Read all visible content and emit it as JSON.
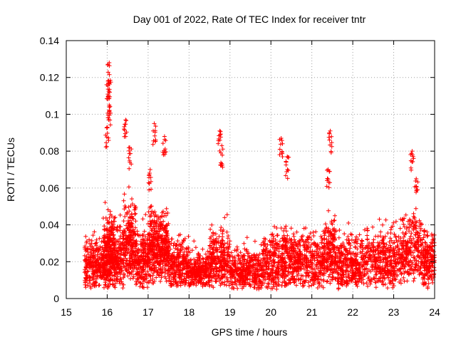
{
  "chart_data": {
    "type": "scatter",
    "title": "Day 001 of 2022, Rate Of TEC Index for receiver tntr",
    "xlabel": "GPS time / hours",
    "ylabel": "ROTI / TECUs",
    "xlim": [
      15,
      24
    ],
    "ylim": [
      0,
      0.14
    ],
    "xticks": [
      "15",
      "16",
      "17",
      "18",
      "19",
      "20",
      "21",
      "22",
      "23",
      "24"
    ],
    "yticks": [
      "0",
      "0.02",
      "0.04",
      "0.06",
      "0.08",
      "0.1",
      "0.12",
      "0.14"
    ],
    "grid": true,
    "marker": "+",
    "color": "#ff0000",
    "series": [
      {
        "name": "ROTI",
        "peaks": [
          {
            "x": 16.05,
            "y": 0.128
          },
          {
            "x": 16.02,
            "y": 0.118
          },
          {
            "x": 16.03,
            "y": 0.11
          },
          {
            "x": 16.05,
            "y": 0.105
          },
          {
            "x": 16.0,
            "y": 0.093
          },
          {
            "x": 16.45,
            "y": 0.097
          },
          {
            "x": 16.55,
            "y": 0.082
          },
          {
            "x": 17.15,
            "y": 0.095
          },
          {
            "x": 17.4,
            "y": 0.088
          },
          {
            "x": 17.05,
            "y": 0.07
          },
          {
            "x": 18.75,
            "y": 0.091
          },
          {
            "x": 18.8,
            "y": 0.083
          },
          {
            "x": 20.25,
            "y": 0.087
          },
          {
            "x": 20.4,
            "y": 0.077
          },
          {
            "x": 21.45,
            "y": 0.091
          },
          {
            "x": 21.4,
            "y": 0.07
          },
          {
            "x": 23.45,
            "y": 0.08
          },
          {
            "x": 23.55,
            "y": 0.065
          }
        ],
        "bands": [
          {
            "x0": 15.45,
            "x1": 16.0,
            "ymin": 0.005,
            "ymax": 0.045,
            "n": 320
          },
          {
            "x0": 15.9,
            "x1": 16.2,
            "ymin": 0.01,
            "ymax": 0.064,
            "n": 140
          },
          {
            "x0": 16.0,
            "x1": 16.4,
            "ymin": 0.005,
            "ymax": 0.055,
            "n": 260
          },
          {
            "x0": 16.4,
            "x1": 16.7,
            "ymin": 0.01,
            "ymax": 0.07,
            "n": 240
          },
          {
            "x0": 16.7,
            "x1": 17.0,
            "ymin": 0.005,
            "ymax": 0.05,
            "n": 200
          },
          {
            "x0": 17.0,
            "x1": 17.5,
            "ymin": 0.008,
            "ymax": 0.066,
            "n": 420
          },
          {
            "x0": 17.5,
            "x1": 18.0,
            "ymin": 0.005,
            "ymax": 0.045,
            "n": 260
          },
          {
            "x0": 18.0,
            "x1": 18.5,
            "ymin": 0.005,
            "ymax": 0.032,
            "n": 260
          },
          {
            "x0": 18.5,
            "x1": 19.0,
            "ymin": 0.005,
            "ymax": 0.052,
            "n": 280
          },
          {
            "x0": 19.0,
            "x1": 19.8,
            "ymin": 0.005,
            "ymax": 0.036,
            "n": 360
          },
          {
            "x0": 19.8,
            "x1": 20.5,
            "ymin": 0.005,
            "ymax": 0.052,
            "n": 380
          },
          {
            "x0": 20.5,
            "x1": 21.3,
            "ymin": 0.005,
            "ymax": 0.05,
            "n": 400
          },
          {
            "x0": 21.3,
            "x1": 21.6,
            "ymin": 0.008,
            "ymax": 0.06,
            "n": 180
          },
          {
            "x0": 21.6,
            "x1": 22.2,
            "ymin": 0.005,
            "ymax": 0.046,
            "n": 300
          },
          {
            "x0": 22.2,
            "x1": 23.2,
            "ymin": 0.005,
            "ymax": 0.052,
            "n": 440
          },
          {
            "x0": 23.2,
            "x1": 23.7,
            "ymin": 0.008,
            "ymax": 0.062,
            "n": 240
          },
          {
            "x0": 23.7,
            "x1": 24.0,
            "ymin": 0.005,
            "ymax": 0.05,
            "n": 180
          }
        ]
      }
    ]
  }
}
